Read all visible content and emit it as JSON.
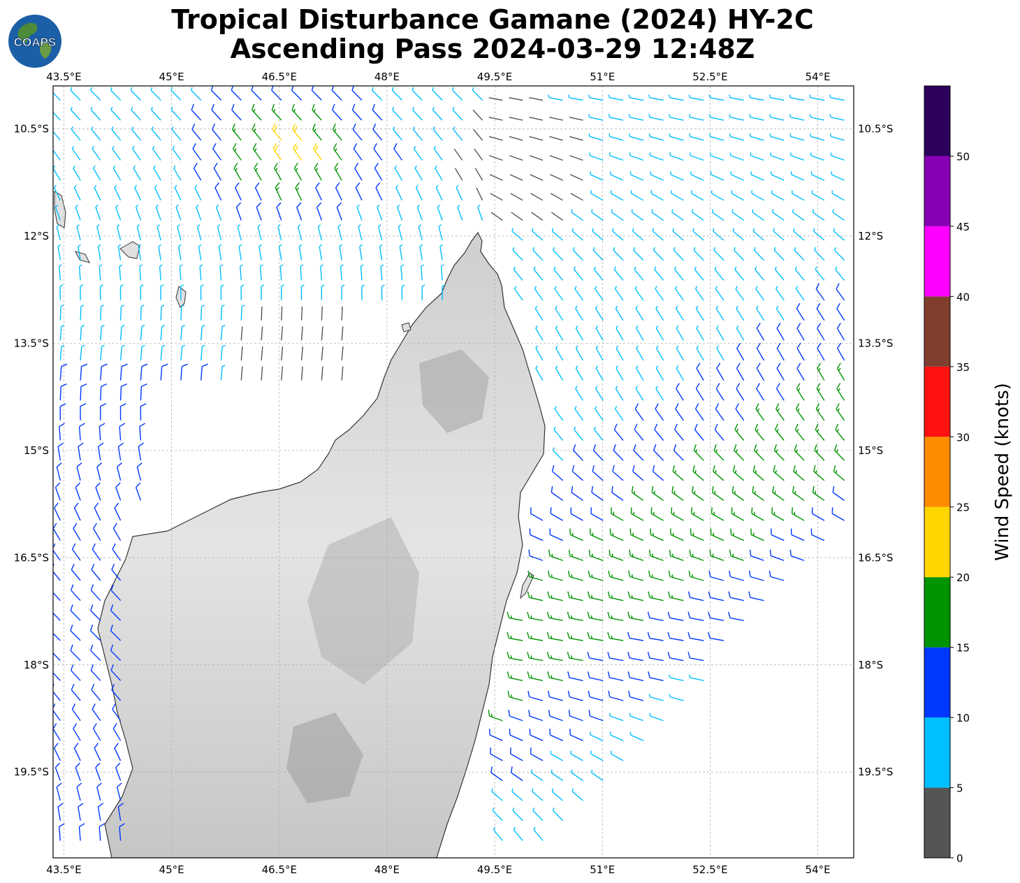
{
  "title": {
    "line1": "Tropical Disturbance Gamane (2024) HY-2C",
    "line2": "Ascending Pass 2024-03-29 12:48Z"
  },
  "logo": {
    "text": "COAPS",
    "icon": "globe-logo-icon"
  },
  "map": {
    "lon_range": [
      43.35,
      54.5
    ],
    "lat_range": [
      -20.7,
      -9.9
    ],
    "lon_ticks": [
      {
        "value": 43.5,
        "label": "43.5°E"
      },
      {
        "value": 45,
        "label": "45°E"
      },
      {
        "value": 46.5,
        "label": "46.5°E"
      },
      {
        "value": 48,
        "label": "48°E"
      },
      {
        "value": 49.5,
        "label": "49.5°E"
      },
      {
        "value": 51,
        "label": "51°E"
      },
      {
        "value": 52.5,
        "label": "52.5°E"
      },
      {
        "value": 54,
        "label": "54°E"
      }
    ],
    "lat_ticks": [
      {
        "value": -10.5,
        "label": "10.5°S"
      },
      {
        "value": -12,
        "label": "12°S"
      },
      {
        "value": -13.5,
        "label": "13.5°S"
      },
      {
        "value": -15,
        "label": "15°S"
      },
      {
        "value": -16.5,
        "label": "16.5°S"
      },
      {
        "value": -18,
        "label": "18°S"
      },
      {
        "value": -19.5,
        "label": "19.5°S"
      }
    ],
    "grid": true,
    "land_color": "#eaeaea",
    "coast_color": "#333333"
  },
  "colorbar": {
    "title": "Wind Speed (knots)",
    "bins": [
      {
        "from": 0,
        "to": 5,
        "color": "#555555"
      },
      {
        "from": 5,
        "to": 10,
        "color": "#00bfff"
      },
      {
        "from": 10,
        "to": 15,
        "color": "#0038ff"
      },
      {
        "from": 15,
        "to": 20,
        "color": "#009400"
      },
      {
        "from": 20,
        "to": 25,
        "color": "#ffd500"
      },
      {
        "from": 25,
        "to": 30,
        "color": "#ff8c00"
      },
      {
        "from": 30,
        "to": 35,
        "color": "#ff1111"
      },
      {
        "from": 35,
        "to": 40,
        "color": "#803e2e"
      },
      {
        "from": 40,
        "to": 45,
        "color": "#ff00ff"
      },
      {
        "from": 45,
        "to": 50,
        "color": "#8800b5"
      },
      {
        "from": 50,
        "to": 55,
        "color": "#2c005c"
      }
    ],
    "tick_labels": [
      "0",
      "5",
      "10",
      "15",
      "20",
      "25",
      "30",
      "35",
      "40",
      "45",
      "50"
    ]
  }
}
